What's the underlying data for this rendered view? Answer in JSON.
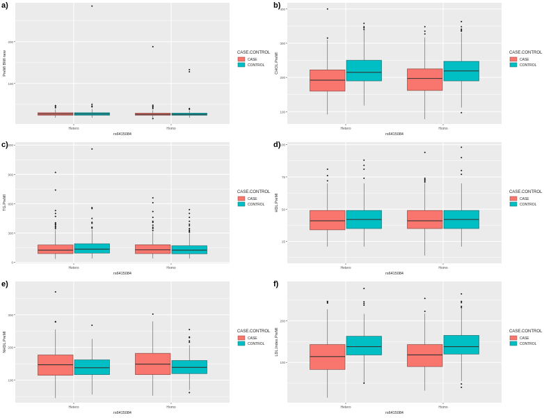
{
  "colors": {
    "case": "#F8766D",
    "control": "#00BFC4",
    "panel_bg": "#EBEBEB",
    "grid": "#FFFFFF"
  },
  "chart_data": [
    {
      "type": "box",
      "panel_label": "a)",
      "ylabel": "PreMI BMI new",
      "xlabel": "rs6415084",
      "legend_title": "CASE.CONTROL",
      "legend": [
        "CASE",
        "CONTROL"
      ],
      "legend_position": "right",
      "categories": [
        "Hetero",
        "Homo"
      ],
      "ylim": [
        3,
        293
      ],
      "yticks": [
        100,
        200
      ],
      "series": [
        {
          "name": "CASE",
          "boxes": [
            {
              "low": 18,
              "q1": 24,
              "median": 27,
              "q3": 30,
              "high": 38,
              "outliers": [
                42,
                45,
                47
              ]
            },
            {
              "low": 18,
              "q1": 24,
              "median": 26,
              "q3": 29,
              "high": 36,
              "outliers": [
                16,
                40,
                43,
                45,
                48,
                188
              ]
            }
          ]
        },
        {
          "name": "CONTROL",
          "boxes": [
            {
              "low": 18,
              "q1": 24,
              "median": 27,
              "q3": 30,
              "high": 39,
              "outliers": [
                44,
                46,
                50,
                285
              ]
            },
            {
              "low": 18,
              "q1": 24,
              "median": 26,
              "q3": 29,
              "high": 35,
              "outliers": [
                38,
                40,
                128,
                133
              ]
            }
          ]
        }
      ]
    },
    {
      "type": "box",
      "panel_label": "b)",
      "ylabel": "CHOL.PreMI",
      "xlabel": "rs6415084",
      "legend_title": "CASE.CONTROL",
      "legend": [
        "CASE",
        "CONTROL"
      ],
      "legend_position": "right",
      "categories": [
        "Hetero",
        "Homo"
      ],
      "ylim": [
        64,
        418
      ],
      "yticks": [
        100,
        200,
        300,
        400
      ],
      "series": [
        {
          "name": "CASE",
          "boxes": [
            {
              "low": 92,
              "q1": 160,
              "median": 192,
              "q3": 222,
              "high": 310,
              "outliers": [
                315,
                400
              ]
            },
            {
              "low": 78,
              "q1": 162,
              "median": 197,
              "q3": 225,
              "high": 317,
              "outliers": [
                327,
                335,
                348
              ]
            }
          ]
        },
        {
          "name": "CONTROL",
          "boxes": [
            {
              "low": 118,
              "q1": 190,
              "median": 215,
              "q3": 250,
              "high": 338,
              "outliers": [
                340,
                345,
                348,
                358
              ]
            },
            {
              "low": 112,
              "q1": 190,
              "median": 219,
              "q3": 247,
              "high": 330,
              "outliers": [
                97,
                335,
                338,
                341,
                348,
                363
              ]
            }
          ]
        }
      ]
    },
    {
      "type": "box",
      "panel_label": "c)",
      "ylabel": "TG.PreMI",
      "xlabel": "rs6415084",
      "legend_title": "CASE.CONTROL",
      "legend": [
        "CASE",
        "CONTROL"
      ],
      "legend_position": "right",
      "categories": [
        "Hetero",
        "Homo"
      ],
      "ylim": [
        -10,
        1230
      ],
      "yticks": [
        0,
        300,
        600,
        900,
        1200
      ],
      "series": [
        {
          "name": "CASE",
          "boxes": [
            {
              "low": 35,
              "q1": 90,
              "median": 125,
              "q3": 178,
              "high": 330,
              "outliers": [
                345,
                360,
                370,
                385,
                395,
                405,
                470,
                500,
                530,
                740,
                920
              ]
            },
            {
              "low": 40,
              "q1": 90,
              "median": 128,
              "q3": 180,
              "high": 310,
              "outliers": [
                325,
                345,
                360,
                380,
                410,
                420,
                460,
                520,
                610,
                660
              ]
            }
          ]
        },
        {
          "name": "CONTROL",
          "boxes": [
            {
              "low": 40,
              "q1": 95,
              "median": 135,
              "q3": 190,
              "high": 335,
              "outliers": [
                350,
                360,
                400,
                410,
                450,
                550,
                560,
                1160
              ]
            },
            {
              "low": 40,
              "q1": 88,
              "median": 125,
              "q3": 170,
              "high": 300,
              "outliers": [
                310,
                320,
                330,
                345,
                375,
                390,
                420,
                460,
                500,
                540
              ]
            }
          ]
        }
      ]
    },
    {
      "type": "box",
      "panel_label": "d)",
      "ylabel": "HDL.PreMI",
      "xlabel": "rs6415084",
      "legend_title": "CASE.CONTROL",
      "legend": [
        "CASE",
        "CONTROL"
      ],
      "legend_position": "right",
      "categories": [
        "Hetero",
        "Homo"
      ],
      "ylim": [
        8,
        102
      ],
      "yticks": [
        25,
        50,
        75,
        100
      ],
      "series": [
        {
          "name": "CASE",
          "boxes": [
            {
              "low": 21,
              "q1": 34,
              "median": 41,
              "q3": 49,
              "high": 70,
              "outliers": [
                72,
                76,
                81
              ]
            },
            {
              "low": 14,
              "q1": 35,
              "median": 41,
              "q3": 49,
              "high": 70,
              "outliers": [
                71,
                72,
                73,
                74,
                94
              ]
            }
          ]
        },
        {
          "name": "CONTROL",
          "boxes": [
            {
              "low": 21,
              "q1": 35,
              "median": 42,
              "q3": 49,
              "high": 70,
              "outliers": [
                74,
                81,
                84,
                88
              ]
            },
            {
              "low": 21,
              "q1": 35,
              "median": 42,
              "q3": 49,
              "high": 70,
              "outliers": [
                77,
                80,
                90,
                98
              ]
            }
          ]
        }
      ]
    },
    {
      "type": "box",
      "panel_label": "e)",
      "ylabel": "NHDL.PreMI",
      "xlabel": "rs6415084",
      "legend_title": "CASE.CONTROL",
      "legend": [
        "CASE",
        "CONTROL"
      ],
      "legend_position": "right",
      "categories": [
        "Hetero",
        "Homo"
      ],
      "ylim": [
        31,
        402
      ],
      "yticks": [
        100,
        200,
        300
      ],
      "series": [
        {
          "name": "CASE",
          "boxes": [
            {
              "low": 45,
              "q1": 115,
              "median": 147,
              "q3": 177,
              "high": 255,
              "outliers": [
                278,
                279,
                370
              ]
            },
            {
              "low": 52,
              "q1": 117,
              "median": 149,
              "q3": 182,
              "high": 280,
              "outliers": [
                302
              ]
            }
          ]
        },
        {
          "name": "CONTROL",
          "boxes": [
            {
              "low": 56,
              "q1": 117,
              "median": 138,
              "q3": 162,
              "high": 226,
              "outliers": [
                268
              ]
            },
            {
              "low": 70,
              "q1": 120,
              "median": 139,
              "q3": 160,
              "high": 207,
              "outliers": [
                62,
                216,
                220,
                230,
                232,
                255
              ]
            }
          ]
        }
      ]
    },
    {
      "type": "box",
      "panel_label": "f)",
      "ylabel": "LDL.Index.PreMI",
      "xlabel": "rs6415084",
      "legend_title": "CASE.CONTROL",
      "legend": [
        "CASE",
        "CONTROL"
      ],
      "legend_position": "right",
      "categories": [
        "Hetero",
        "Homo"
      ],
      "ylim": [
        3,
        295
      ],
      "yticks": [
        100,
        200
      ],
      "series": [
        {
          "name": "CASE",
          "boxes": [
            {
              "low": 15,
              "q1": 83,
              "median": 114,
              "q3": 143,
              "high": 228,
              "outliers": [
                243,
                245,
                247
              ]
            },
            {
              "low": 32,
              "q1": 90,
              "median": 118,
              "q3": 143,
              "high": 218,
              "outliers": [
                223,
                254
              ]
            }
          ]
        },
        {
          "name": "CONTROL",
          "boxes": [
            {
              "low": 50,
              "q1": 118,
              "median": 138,
              "q3": 163,
              "high": 217,
              "outliers": [
                50,
                238,
                242,
                246,
                278
              ]
            },
            {
              "low": 55,
              "q1": 120,
              "median": 138,
              "q3": 165,
              "high": 230,
              "outliers": [
                40,
                48,
                232,
                235,
                244,
                247,
                265
              ]
            }
          ]
        }
      ]
    }
  ]
}
